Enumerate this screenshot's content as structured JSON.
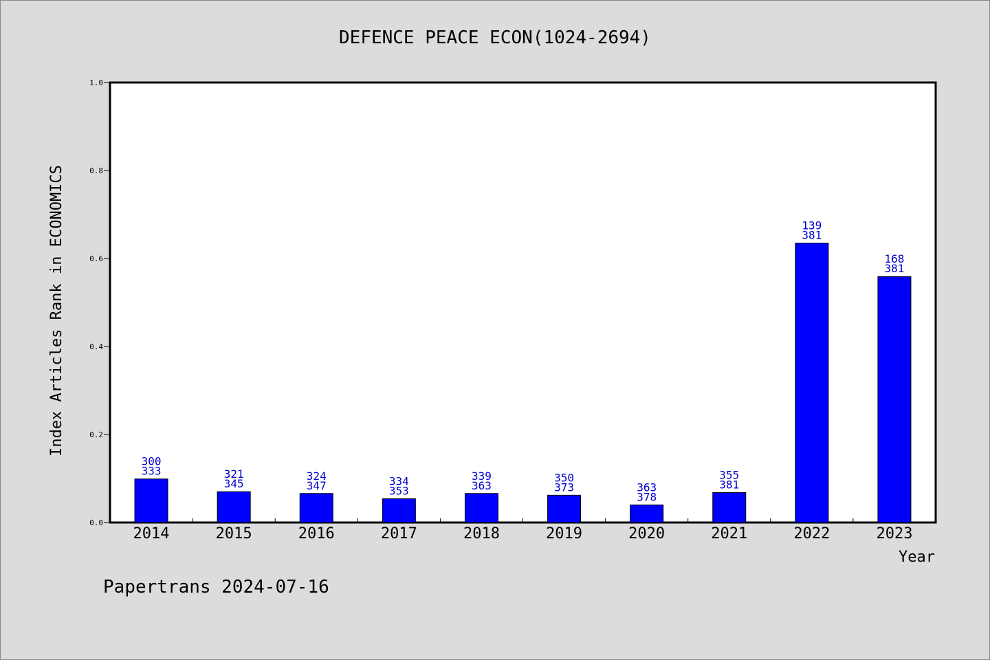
{
  "chart_data": {
    "type": "bar",
    "title": "DEFENCE PEACE ECON(1024-2694)",
    "xlabel": "Year",
    "ylabel": "Index Articles Rank in ECONOMICS",
    "ylim": [
      0,
      1.0
    ],
    "yticks": [
      "0.0",
      "0.2",
      "0.4",
      "0.6",
      "0.8",
      "1.0"
    ],
    "categories": [
      "2014",
      "2015",
      "2016",
      "2017",
      "2018",
      "2019",
      "2020",
      "2021",
      "2022",
      "2023"
    ],
    "values": [
      0.099,
      0.07,
      0.066,
      0.054,
      0.066,
      0.062,
      0.04,
      0.068,
      0.635,
      0.559
    ],
    "labels_top": [
      "300",
      "321",
      "324",
      "334",
      "339",
      "350",
      "363",
      "355",
      "139",
      "168"
    ],
    "labels_bottom": [
      "333",
      "345",
      "347",
      "353",
      "363",
      "373",
      "378",
      "381",
      "381",
      "381"
    ],
    "bar_color": "#0000ff",
    "label_color": "#0000cc",
    "grid": false
  },
  "footer": "Papertrans 2024-07-16"
}
